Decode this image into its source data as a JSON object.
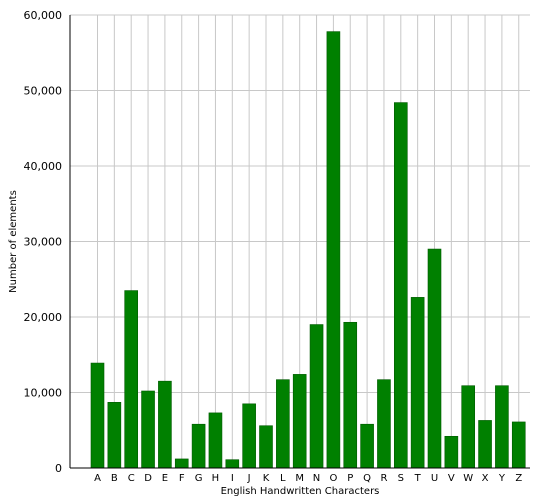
{
  "chart_data": {
    "type": "bar",
    "title": "",
    "xlabel": "English Handwritten Characters",
    "ylabel": "Number of elements",
    "categories": [
      "A",
      "B",
      "C",
      "D",
      "E",
      "F",
      "G",
      "H",
      "I",
      "J",
      "K",
      "L",
      "M",
      "N",
      "O",
      "P",
      "Q",
      "R",
      "S",
      "T",
      "U",
      "V",
      "W",
      "X",
      "Y",
      "Z"
    ],
    "values": [
      13900,
      8700,
      23500,
      10200,
      11500,
      1200,
      5800,
      7300,
      1100,
      8500,
      5600,
      11700,
      12400,
      19000,
      57800,
      19300,
      5800,
      11700,
      48400,
      22600,
      29000,
      4200,
      10900,
      6300,
      10900,
      6100
    ],
    "ylim": [
      0,
      60000
    ],
    "yticks": [
      {
        "value": 0,
        "label": "0"
      },
      {
        "value": 10000,
        "label": "10,000"
      },
      {
        "value": 20000,
        "label": "20,000"
      },
      {
        "value": 30000,
        "label": "30,000"
      },
      {
        "value": 40000,
        "label": "40,000"
      },
      {
        "value": 50000,
        "label": "50,000"
      },
      {
        "value": 60000,
        "label": "60,000"
      }
    ],
    "grid": true,
    "colors": {
      "bar_fill": "#008000",
      "bar_stroke": "#005a00",
      "grid": "#c8c8c8",
      "axis": "#000000"
    }
  }
}
